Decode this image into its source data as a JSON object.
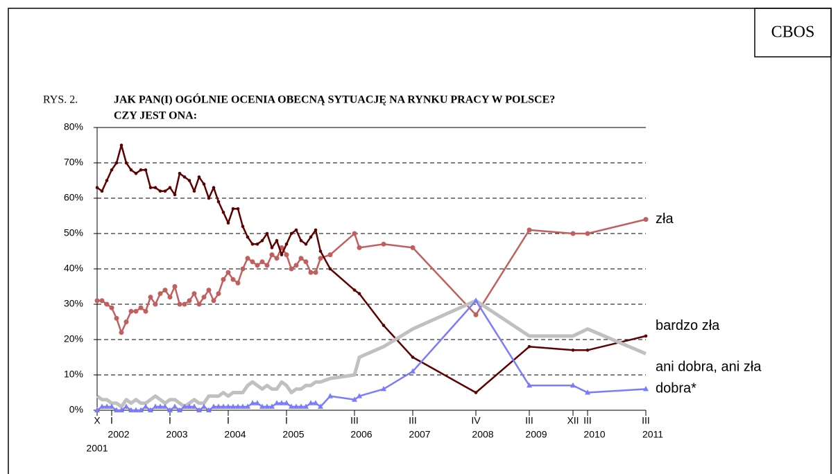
{
  "source": "CBOS",
  "chart_data": {
    "type": "line",
    "label": "RYS. 2.",
    "title": [
      "JAK PAN(I) OGÓLNIE OCENIA OBECNĄ SYTUACJĘ NA RYNKU PRACY W POLSCE?",
      "CZY JEST ONA:"
    ],
    "x": [
      0,
      1,
      2,
      3,
      4,
      5,
      6,
      7,
      8,
      9,
      10,
      11,
      12,
      13,
      14,
      15,
      16,
      17,
      18,
      19,
      20,
      21,
      22,
      23,
      24,
      25,
      26,
      27,
      28,
      29,
      30,
      31,
      32,
      33,
      34,
      35,
      36,
      37,
      38,
      39,
      40,
      41,
      42,
      43,
      44,
      45,
      46,
      48,
      53,
      54,
      59,
      65,
      78,
      89,
      98,
      101,
      113
    ],
    "xlim": [
      0,
      113
    ],
    "xticks": [
      {
        "value": 0,
        "label": "X"
      },
      {
        "value": 3,
        "label": "I"
      },
      {
        "value": 15,
        "label": "I"
      },
      {
        "value": 27,
        "label": "I"
      },
      {
        "value": 39,
        "label": "I"
      },
      {
        "value": 53,
        "label": "III"
      },
      {
        "value": 65,
        "label": "III"
      },
      {
        "value": 78,
        "label": "IV"
      },
      {
        "value": 89,
        "label": "III"
      },
      {
        "value": 98,
        "label": "XII"
      },
      {
        "value": 101,
        "label": "III"
      },
      {
        "value": 113,
        "label": "III"
      }
    ],
    "year_ticks": [
      {
        "value": 0,
        "label": "2001"
      },
      {
        "value": 3,
        "label": "2002"
      },
      {
        "value": 15,
        "label": "2003"
      },
      {
        "value": 27,
        "label": "2004"
      },
      {
        "value": 39,
        "label": "2005"
      },
      {
        "value": 53,
        "label": "2006"
      },
      {
        "value": 65,
        "label": "2007"
      },
      {
        "value": 78,
        "label": "2008"
      },
      {
        "value": 89,
        "label": "2009"
      },
      {
        "value": 101,
        "label": "2010"
      },
      {
        "value": 113,
        "label": "2011"
      }
    ],
    "ylim": [
      0,
      80
    ],
    "yticks": [
      {
        "value": 0,
        "label": "0%"
      },
      {
        "value": 10,
        "label": "10%"
      },
      {
        "value": 20,
        "label": "20%"
      },
      {
        "value": 30,
        "label": "30%"
      },
      {
        "value": 40,
        "label": "40%"
      },
      {
        "value": 50,
        "label": "50%"
      },
      {
        "value": 60,
        "label": "60%"
      },
      {
        "value": 70,
        "label": "70%"
      },
      {
        "value": 80,
        "label": "80%"
      }
    ],
    "grid": true,
    "series": [
      {
        "name": "zła",
        "color": "#c0605e",
        "marker": "circle",
        "values": [
          31,
          31,
          30,
          29,
          26,
          22,
          25,
          28,
          28,
          29,
          28,
          32,
          30,
          33,
          34,
          32,
          35,
          30,
          30,
          31,
          33,
          30,
          32,
          34,
          31,
          33,
          37,
          39,
          37,
          36,
          40,
          43,
          42,
          41,
          42,
          41,
          44,
          43,
          46,
          44,
          40,
          41,
          43,
          42,
          39,
          39,
          43,
          44,
          50,
          46,
          47,
          46,
          27,
          51,
          50,
          50,
          54
        ]
      },
      {
        "name": "bardzo zła",
        "color": "#5c0000",
        "marker": "dot",
        "values": [
          63,
          62,
          65,
          68,
          70,
          75,
          70,
          68,
          67,
          68,
          68,
          63,
          63,
          62,
          62,
          63,
          61,
          67,
          66,
          65,
          62,
          66,
          64,
          60,
          63,
          59,
          56,
          53,
          57,
          57,
          52,
          49,
          47,
          47,
          48,
          50,
          46,
          48,
          44,
          47,
          50,
          51,
          48,
          47,
          49,
          51,
          45,
          40,
          34,
          33,
          24,
          15,
          5,
          18,
          17,
          17,
          21
        ]
      },
      {
        "name": "ani dobra, ani zła",
        "color": "#c0c0c0",
        "marker": "none",
        "values": [
          4,
          3,
          3,
          2,
          2,
          1,
          3,
          2,
          3,
          2,
          2,
          3,
          4,
          3,
          2,
          3,
          3,
          2,
          1,
          2,
          3,
          2,
          2,
          4,
          4,
          4,
          5,
          4,
          5,
          5,
          5,
          7,
          8,
          7,
          6,
          7,
          6,
          6,
          8,
          7,
          5,
          6,
          6,
          7,
          7,
          8,
          8,
          9,
          10,
          15,
          18,
          23,
          31,
          21,
          21,
          23,
          16
        ]
      },
      {
        "name": "dobra*",
        "color": "#7b7bff",
        "marker": "triangle",
        "values": [
          0,
          1,
          1,
          1,
          0,
          0,
          1,
          0,
          0,
          0,
          1,
          0,
          1,
          1,
          1,
          0,
          1,
          0,
          1,
          1,
          1,
          0,
          1,
          0,
          1,
          1,
          1,
          1,
          1,
          1,
          1,
          1,
          2,
          2,
          1,
          1,
          1,
          2,
          2,
          2,
          1,
          1,
          1,
          1,
          2,
          2,
          1,
          4,
          3,
          4,
          6,
          11,
          31,
          7,
          7,
          5,
          6
        ]
      }
    ]
  }
}
